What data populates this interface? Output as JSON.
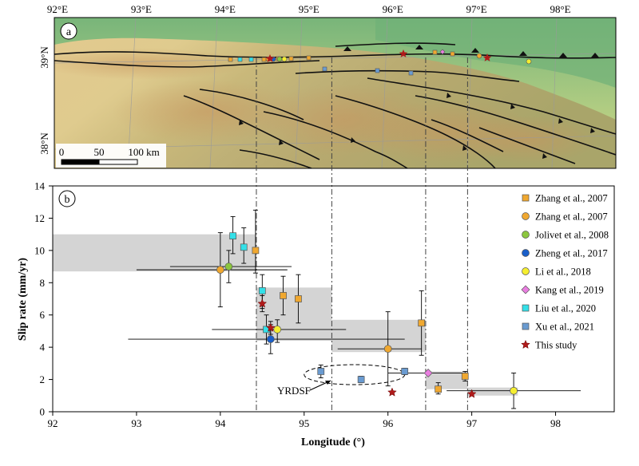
{
  "map": {
    "panel_label": "a",
    "top_ticks": [
      "92°E",
      "93°E",
      "94°E",
      "95°E",
      "96°E",
      "97°E",
      "98°E"
    ],
    "lat_labels": [
      "39°N",
      "38°N"
    ],
    "scale_bar": {
      "labels": [
        "0",
        "50",
        "100 km"
      ]
    }
  },
  "chart_data": {
    "type": "scatter",
    "panel_label": "b",
    "xlabel": "Longitude (°)",
    "ylabel": "Slip rate (mm/yr)",
    "xlim": [
      92,
      98.7
    ],
    "ylim": [
      0,
      14
    ],
    "xticks": [
      92,
      93,
      94,
      95,
      96,
      97,
      98
    ],
    "yticks": [
      0,
      2,
      4,
      6,
      8,
      10,
      12,
      14
    ],
    "boundaries": [
      94.43,
      95.33,
      96.45,
      96.95
    ],
    "grey_bands": [
      {
        "x": [
          92,
          94.43
        ],
        "y": [
          8.7,
          11.0
        ]
      },
      {
        "x": [
          94.43,
          95.33
        ],
        "y": [
          4.4,
          7.7
        ]
      },
      {
        "x": [
          95.33,
          96.45
        ],
        "y": [
          3.7,
          5.7
        ]
      },
      {
        "x": [
          96.45,
          96.95
        ],
        "y": [
          1.4,
          2.5
        ]
      },
      {
        "x": [
          96.95,
          97.55
        ],
        "y": [
          1.0,
          1.5
        ]
      }
    ],
    "ellipse": {
      "label": "YRDSF",
      "cx": 95.6,
      "cy": 2.3,
      "rx": 0.6,
      "ry": 0.62
    },
    "series": [
      {
        "name": "Zhang et al., 2007",
        "marker": "square",
        "color": "#f0a830",
        "points": [
          {
            "x": 94.42,
            "y": 10.0,
            "ylo": 8.6,
            "yhi": 12.5
          },
          {
            "x": 94.75,
            "y": 7.2,
            "ylo": 6.0,
            "yhi": 8.4
          },
          {
            "x": 94.93,
            "y": 7.0,
            "ylo": 5.5,
            "yhi": 8.5
          },
          {
            "x": 96.4,
            "y": 5.5,
            "ylo": 3.5,
            "yhi": 7.5
          },
          {
            "x": 96.6,
            "y": 1.4,
            "ylo": 1.1,
            "yhi": 1.8
          },
          {
            "x": 96.92,
            "y": 2.2,
            "ylo": 1.9,
            "yhi": 2.5
          }
        ]
      },
      {
        "name": "Zhang et al., 2007",
        "marker": "circle",
        "color": "#f0a830",
        "points": [
          {
            "x": 94.0,
            "y": 8.8,
            "ylo": 6.5,
            "yhi": 11.1,
            "xlo": 93.0,
            "xhi": 94.8
          },
          {
            "x": 96.0,
            "y": 3.9,
            "ylo": 1.6,
            "yhi": 6.2,
            "xlo": 95.4,
            "xhi": 96.4
          }
        ]
      },
      {
        "name": "Jolivet et al., 2008",
        "marker": "circle",
        "color": "#8cc63f",
        "points": [
          {
            "x": 94.1,
            "y": 9.0,
            "ylo": 8.0,
            "yhi": 10.0,
            "xlo": 93.4,
            "xhi": 94.85
          }
        ]
      },
      {
        "name": "Zheng et al., 2017",
        "marker": "circle",
        "color": "#1a5fc9",
        "points": [
          {
            "x": 94.6,
            "y": 4.5,
            "ylo": 3.6,
            "yhi": 5.4,
            "xlo": 92.9,
            "xhi": 96.2
          }
        ]
      },
      {
        "name": "Li et al., 2018",
        "marker": "circle",
        "color": "#f5ee30",
        "points": [
          {
            "x": 94.68,
            "y": 5.1,
            "ylo": 4.3,
            "yhi": 5.7,
            "xlo": 93.9,
            "xhi": 95.5
          },
          {
            "x": 97.5,
            "y": 1.3,
            "ylo": 0.2,
            "yhi": 2.4,
            "xlo": 96.7,
            "xhi": 98.3
          }
        ]
      },
      {
        "name": "Kang et al., 2019",
        "marker": "diamond",
        "color": "#e97ee0",
        "points": [
          {
            "x": 96.48,
            "y": 2.4,
            "xlo": 96.0,
            "xhi": 96.9
          }
        ]
      },
      {
        "name": "Liu et al., 2020",
        "marker": "square",
        "color": "#33e0e8",
        "points": [
          {
            "x": 94.15,
            "y": 10.9,
            "ylo": 9.8,
            "yhi": 12.1
          },
          {
            "x": 94.28,
            "y": 10.2,
            "ylo": 9.2,
            "yhi": 11.4
          },
          {
            "x": 94.5,
            "y": 7.5,
            "ylo": 6.4,
            "yhi": 8.5
          },
          {
            "x": 94.55,
            "y": 5.1,
            "ylo": 4.2,
            "yhi": 6.0
          }
        ]
      },
      {
        "name": "Xu et al., 2021",
        "marker": "square",
        "color": "#6a9bd1",
        "points": [
          {
            "x": 95.2,
            "y": 2.5,
            "ylo": 2.1,
            "yhi": 2.9
          },
          {
            "x": 95.68,
            "y": 2.0,
            "ylo": 1.8,
            "yhi": 2.2
          },
          {
            "x": 96.2,
            "y": 2.5,
            "ylo": 2.3,
            "yhi": 2.7
          }
        ]
      },
      {
        "name": "This study",
        "marker": "star",
        "color": "#b01a1a",
        "points": [
          {
            "x": 94.5,
            "y": 6.7,
            "ylo": 6.2,
            "yhi": 7.2
          },
          {
            "x": 94.6,
            "y": 5.2,
            "ylo": 4.8,
            "yhi": 5.6
          },
          {
            "x": 96.05,
            "y": 1.2
          },
          {
            "x": 97.0,
            "y": 1.1
          }
        ]
      }
    ]
  }
}
